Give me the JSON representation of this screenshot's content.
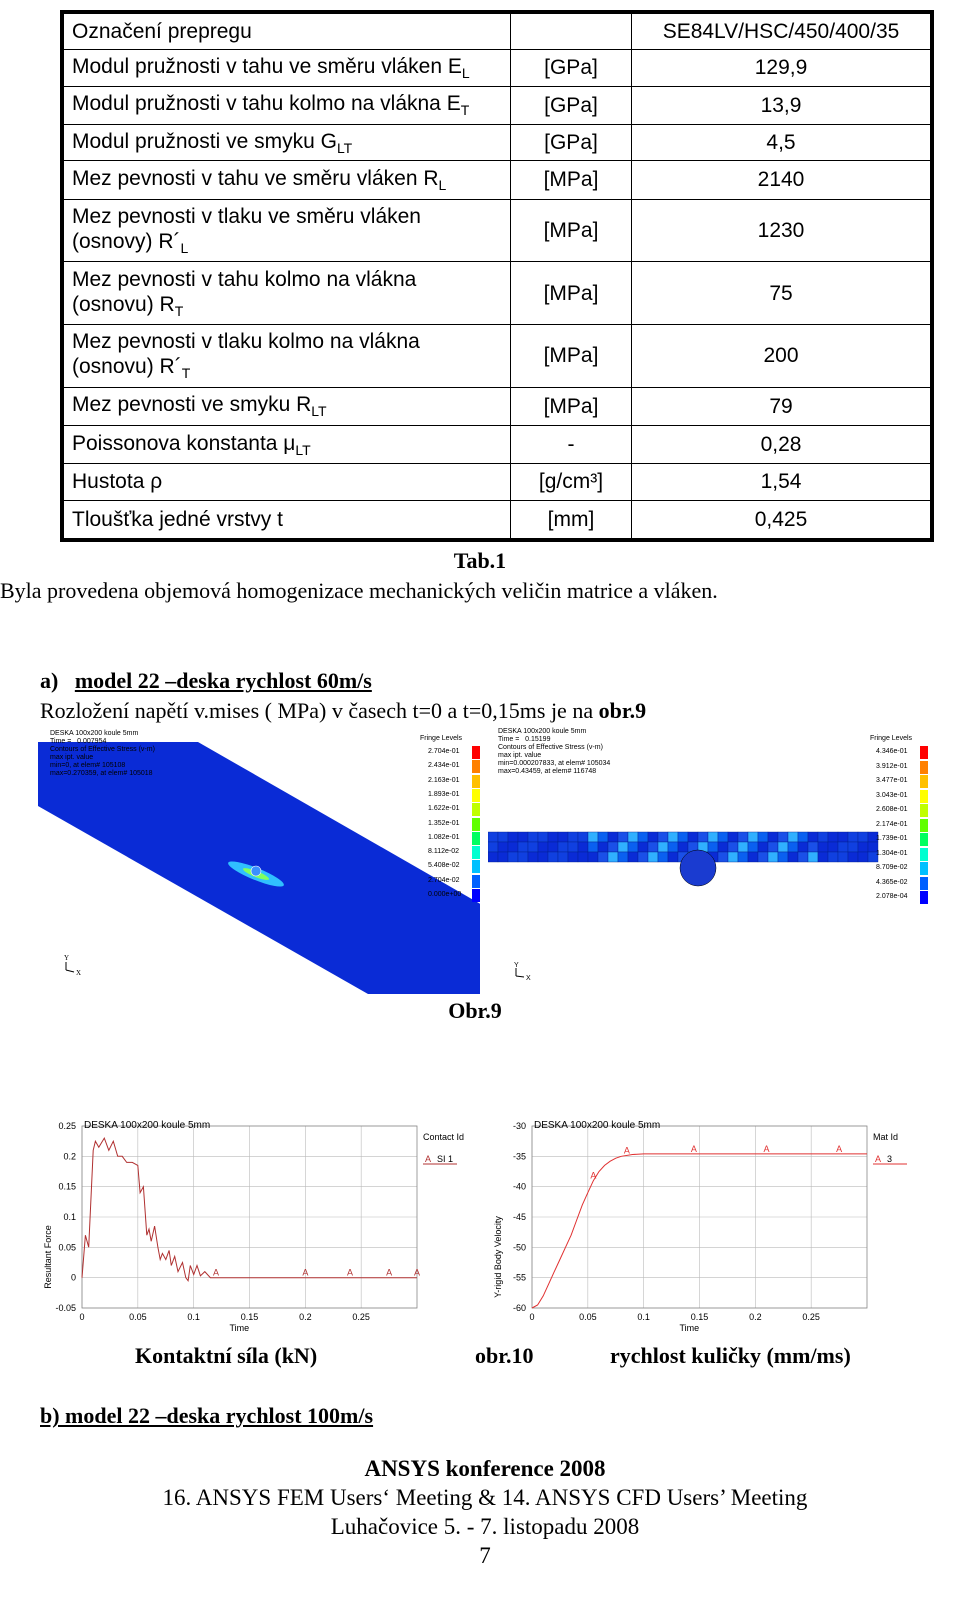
{
  "table": {
    "header_name": "Označení prepregu",
    "header_value": "SE84LV/HSC/450/400/35",
    "rows": [
      {
        "name_main": "Modul pružnosti v tahu ve směru vláken E",
        "sub": "L",
        "line2": "",
        "unit": "[GPa]",
        "value": "129,9"
      },
      {
        "name_main": "Modul pružnosti v tahu kolmo na vlákna E",
        "sub": "T",
        "line2": "",
        "unit": "[GPa]",
        "value": "13,9"
      },
      {
        "name_main": "Modul pružnosti ve smyku G",
        "sub": "LT",
        "line2": "",
        "unit": "[GPa]",
        "value": "4,5"
      },
      {
        "name_main": "Mez pevnosti v tahu ve směru vláken  R",
        "sub": "L",
        "line2": "",
        "unit": "[MPa]",
        "value": "2140"
      },
      {
        "name_main": "Mez pevnosti v tlaku ve směru vláken",
        "sub": "L",
        "line2": "(osnovy) R´",
        "unit": "[MPa]",
        "value": "1230"
      },
      {
        "name_main": "Mez pevnosti v tahu kolmo na vlákna",
        "sub": "T",
        "line2": "(osnovu) R",
        "unit": "[MPa]",
        "value": "75"
      },
      {
        "name_main": "Mez pevnosti v tlaku kolmo na vlákna",
        "sub": "T",
        "line2": "(osnovu) R´",
        "unit": "[MPa]",
        "value": "200"
      },
      {
        "name_main": "Mez pevnosti ve smyku R",
        "sub": "LT",
        "line2": "",
        "unit": "[MPa]",
        "value": "79"
      },
      {
        "name_main": "Poissonova konstanta μ",
        "sub": "LT",
        "line2": "",
        "unit": "-",
        "value": "0,28"
      },
      {
        "name_main": "Hustota  ρ",
        "sub": "",
        "line2": "",
        "unit": "[g/cm³]",
        "value": "1,54"
      },
      {
        "name_main": "Tloušťka jedné vrstvy t",
        "sub": "",
        "line2": "",
        "unit": "[mm]",
        "value": "0,425"
      }
    ]
  },
  "text": {
    "tab_caption": "Tab.1",
    "homog": "Byla provedena objemová homogenizace mechanických veličin matrice a vláken.",
    "section_a_label": "a)",
    "section_a_title": "model 22 –deska  rychlost 60m/s",
    "distribution_text": "Rozložení napětí v.mises  ( MPa) v časech  t=0 a t=0,15ms je na ",
    "distribution_ref": "obr.9",
    "fig9_caption": "Obr.9",
    "fig10_left": "Kontaktní síla (kN)",
    "fig10_mid": "obr.10",
    "fig10_right": "rychlost kuličky (mm/ms)",
    "section_b": "b)  model 22 –deska rychlost 100m/s"
  },
  "fe_left": {
    "title": "DESKA 100x200 koule 5mm",
    "time": "Time =   0.007954",
    "contours": "Contours of Effective Stress (v-m)",
    "max_ipt": "max ipt. value",
    "min_line": "min=0, at elem# 105108",
    "max_line": "max=0.270359, at elem# 105018",
    "legend_title": "Fringe Levels",
    "legend": [
      "2.704e-01",
      "2.434e-01",
      "2.163e-01",
      "1.893e-01",
      "1.622e-01",
      "1.352e-01",
      "1.082e-01",
      "8.112e-02",
      "5.408e-02",
      "2.704e-02",
      "0.000e+00"
    ],
    "colors": [
      "#ff0000",
      "#ff8000",
      "#ffc000",
      "#ffff00",
      "#c0ff00",
      "#60ff00",
      "#00ff60",
      "#00ffd0",
      "#00c0ff",
      "#0060ff",
      "#0000ff"
    ]
  },
  "fe_right": {
    "title": "DESKA 100x200 koule 5mm",
    "time": "Time =   0.15199",
    "contours": "Contours of Effective Stress (v-m)",
    "max_ipt": "max ipt. value",
    "min_line": "min=0.000207833, at elem# 105034",
    "max_line": "max=0.43459, at elem# 116748",
    "legend_title": "Fringe Levels",
    "legend": [
      "4.346e-01",
      "3.912e-01",
      "3.477e-01",
      "3.043e-01",
      "2.608e-01",
      "2.174e-01",
      "1.739e-01",
      "1.304e-01",
      "8.709e-02",
      "4.365e-02",
      "2.078e-04"
    ],
    "colors": [
      "#ff0000",
      "#ff8000",
      "#ffc000",
      "#ffff00",
      "#c0ff00",
      "#60ff00",
      "#00ff60",
      "#00ffd0",
      "#00c0ff",
      "#0060ff",
      "#0000ff"
    ]
  },
  "chart_data": [
    {
      "type": "line",
      "title": "DESKA 100x200 koule 5mm",
      "xlabel": "Time",
      "ylabel": "Resultant Force",
      "legend_title": "Contact Id",
      "legend_label": "SI 1",
      "marker_letter": "A",
      "xlim": [
        0,
        0.3
      ],
      "ylim": [
        -0.05,
        0.25
      ],
      "xticks": [
        "0",
        "0.05",
        "0.1",
        "0.15",
        "0.2",
        "0.25"
      ],
      "yticks": [
        "-0.05",
        "0",
        "0.05",
        "0.1",
        "0.15",
        "0.2",
        "0.25"
      ],
      "line_color": "#b03030",
      "series": [
        {
          "x": [
            0,
            0.003,
            0.006,
            0.01,
            0.012,
            0.015,
            0.02,
            0.024,
            0.028,
            0.032,
            0.036,
            0.04,
            0.045,
            0.05,
            0.052,
            0.055,
            0.058,
            0.06,
            0.062,
            0.065,
            0.068,
            0.07,
            0.072,
            0.075,
            0.078,
            0.08,
            0.083,
            0.086,
            0.09,
            0.093,
            0.095,
            0.097,
            0.1,
            0.103,
            0.106,
            0.11,
            0.115,
            0.12,
            0.15,
            0.2,
            0.25,
            0.3
          ],
          "y": [
            0,
            0.07,
            0.05,
            0.21,
            0.225,
            0.215,
            0.23,
            0.21,
            0.225,
            0.2,
            0.2,
            0.19,
            0.19,
            0.185,
            0.14,
            0.15,
            0.07,
            0.08,
            0.06,
            0.085,
            0.05,
            0.03,
            0.04,
            0.03,
            0.045,
            0.02,
            0.035,
            0.01,
            0.025,
            0.0,
            -0.005,
            0.02,
            0.005,
            0.02,
            0.003,
            0.01,
            0.0,
            0.0,
            0.0,
            0.0,
            0.0,
            0.0
          ]
        }
      ],
      "markers_x": [
        0.12,
        0.2,
        0.24,
        0.275,
        0.3
      ]
    },
    {
      "type": "line",
      "title": "DESKA 100x200 koule 5mm",
      "xlabel": "Time",
      "ylabel": "Y-rigid Body Velocity",
      "legend_title": "Mat Id",
      "legend_label": "3",
      "marker_letter": "A",
      "xlim": [
        0,
        0.3
      ],
      "ylim": [
        -60,
        -30
      ],
      "xticks": [
        "0",
        "0.05",
        "0.1",
        "0.15",
        "0.2",
        "0.25"
      ],
      "yticks": [
        "-30",
        "-35",
        "-40",
        "-45",
        "-50",
        "-55",
        "-60"
      ],
      "line_color": "#e03030",
      "series": [
        {
          "x": [
            0,
            0.005,
            0.01,
            0.015,
            0.02,
            0.025,
            0.03,
            0.035,
            0.04,
            0.045,
            0.05,
            0.055,
            0.06,
            0.065,
            0.07,
            0.075,
            0.08,
            0.09,
            0.1,
            0.11,
            0.15,
            0.2,
            0.25,
            0.3
          ],
          "y": [
            -60,
            -59.5,
            -58,
            -56,
            -54,
            -52,
            -50,
            -48,
            -45.5,
            -43,
            -41,
            -39,
            -37.5,
            -36.5,
            -35.8,
            -35.3,
            -35,
            -34.7,
            -34.6,
            -34.6,
            -34.6,
            -34.6,
            -34.6,
            -34.6
          ]
        }
      ],
      "markers_x": [
        0.055,
        0.085,
        0.145,
        0.21,
        0.275
      ]
    }
  ],
  "footer": {
    "conf": "ANSYS konference 2008",
    "meeting": "16. ANSYS FEM Users‘ Meeting & 14. ANSYS CFD Users’ Meeting",
    "place": "Luhačovice 5. - 7. listopadu 2008",
    "page": "7"
  }
}
